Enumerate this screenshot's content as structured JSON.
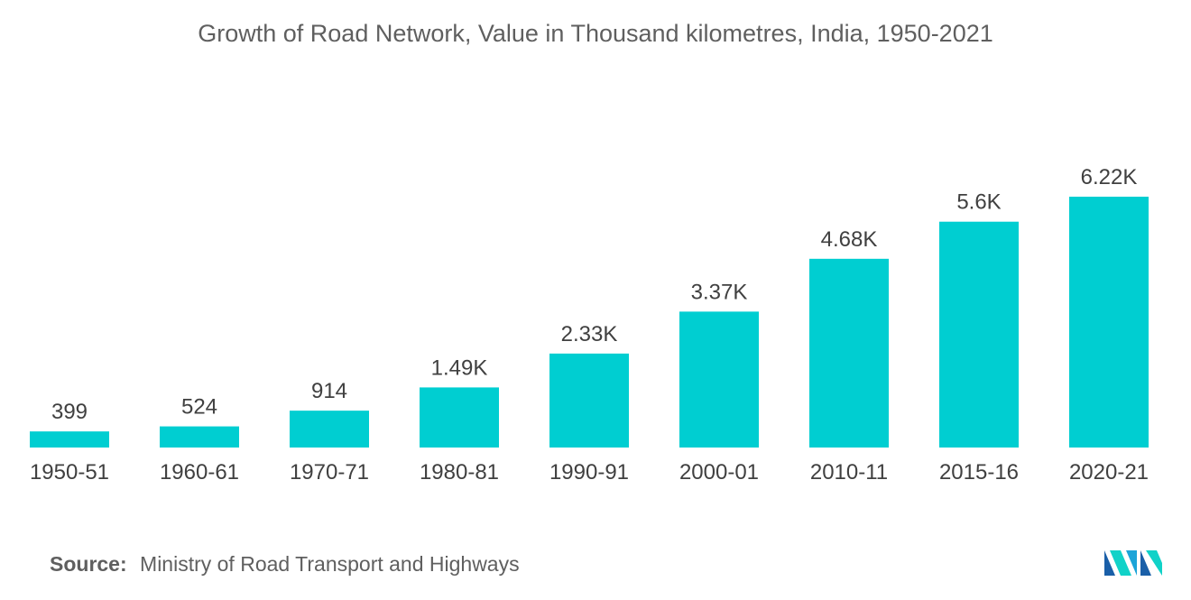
{
  "chart_data": {
    "type": "bar",
    "title": "Growth of Road Network, Value in Thousand kilometres, India, 1950-2021",
    "categories": [
      "1950-51",
      "1960-61",
      "1970-71",
      "1980-81",
      "1990-91",
      "2000-01",
      "2010-11",
      "2015-16",
      "2020-21"
    ],
    "values": [
      399,
      524,
      914,
      1490,
      2330,
      3370,
      4680,
      5600,
      6220
    ],
    "data_labels": [
      "399",
      "524",
      "914",
      "1.49K",
      "2.33K",
      "3.37K",
      "4.68K",
      "5.6K",
      "6.22K"
    ],
    "bar_color": "#00ced1",
    "grid": false,
    "legend": "none"
  },
  "source": {
    "label": "Source:",
    "text": "Ministry of Road Transport and Highways"
  },
  "logo": {
    "icon": "mordor-intelligence-logo-icon",
    "colors": [
      "#1ca4d8",
      "#11d2c8",
      "#1a5fa8"
    ]
  }
}
